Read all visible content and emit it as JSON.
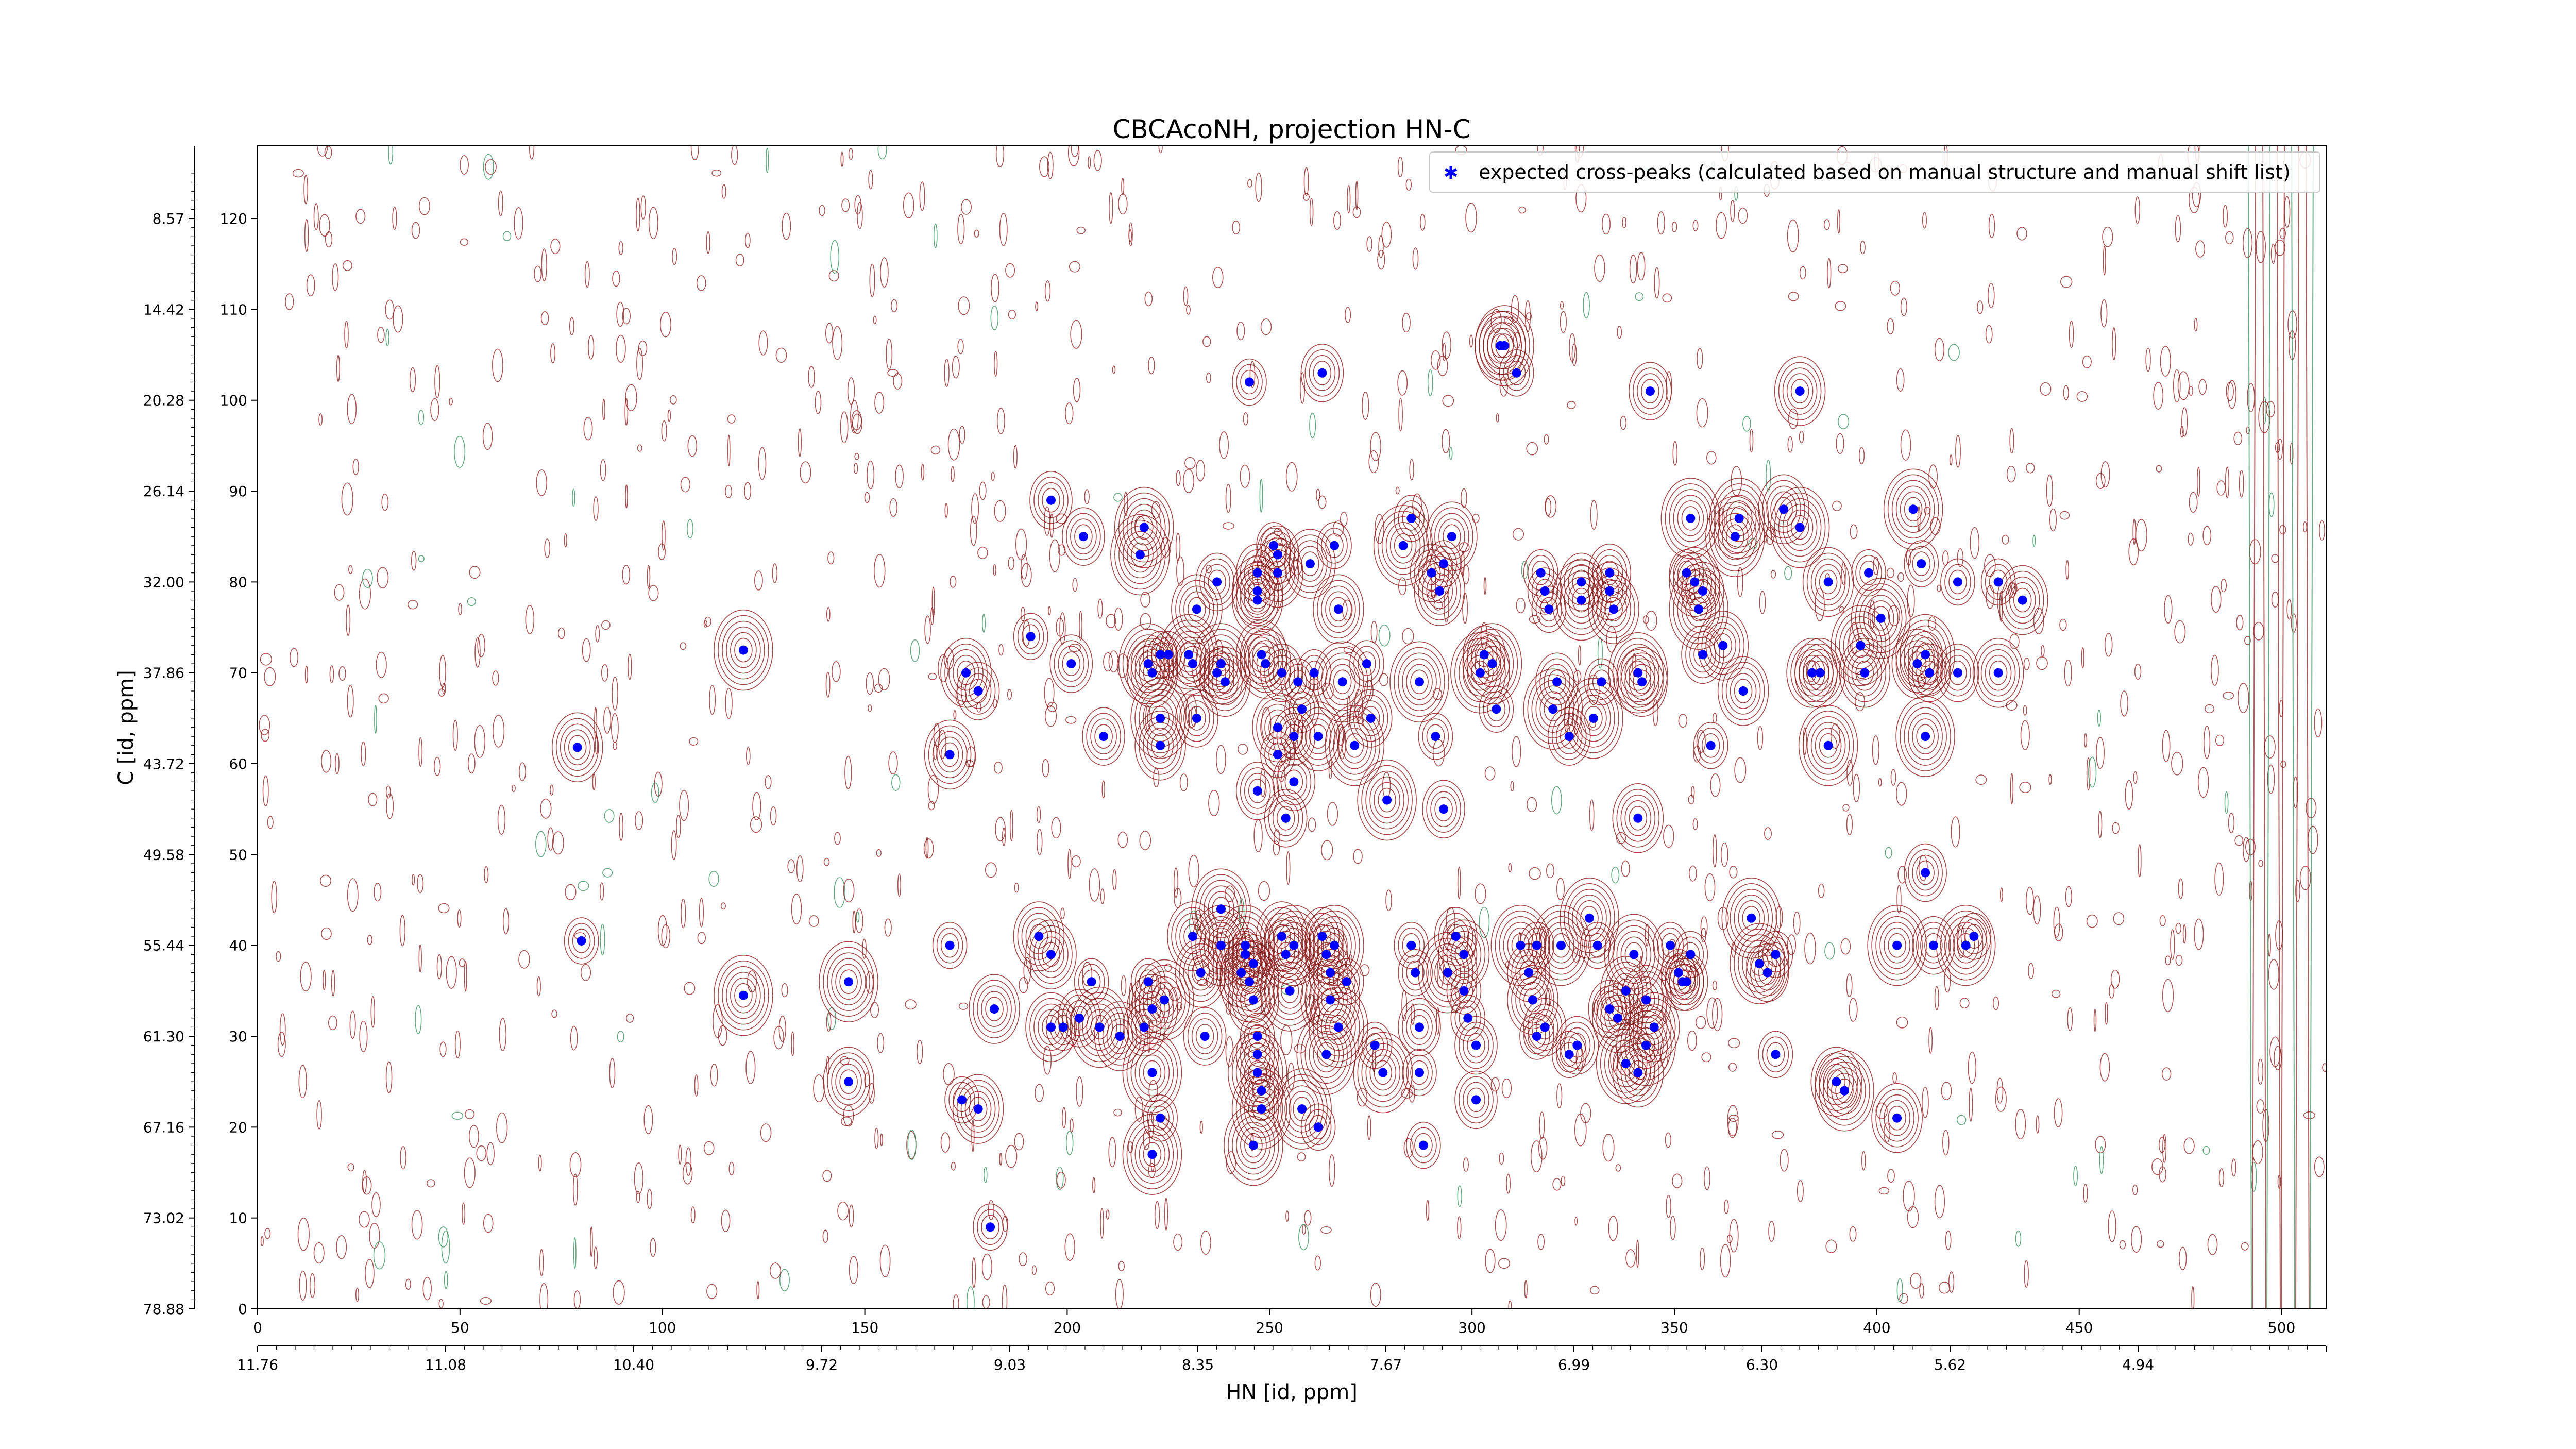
{
  "chart_data": {
    "type": "scatter",
    "title": "CBCAcoNH, projection HN-C",
    "xlabel": "HN [id, ppm]",
    "ylabel": "C [id, ppm]",
    "xlim": [
      0,
      511
    ],
    "ylim": [
      0,
      128
    ],
    "x_ticks": [
      0,
      50,
      100,
      150,
      200,
      250,
      300,
      350,
      400,
      450,
      500
    ],
    "y_ticks": [
      0,
      10,
      20,
      30,
      40,
      50,
      60,
      70,
      80,
      90,
      100,
      110,
      120
    ],
    "secondary_x_ticks": [
      "11.76",
      "11.08",
      "10.40",
      "9.72",
      "9.03",
      "8.35",
      "7.67",
      "6.99",
      "6.30",
      "5.62",
      "4.94"
    ],
    "secondary_y_ticks": [
      "78.88",
      "73.02",
      "67.16",
      "61.30",
      "55.44",
      "49.58",
      "43.72",
      "37.86",
      "32.00",
      "26.14",
      "20.28",
      "14.42",
      "8.57"
    ],
    "legend": {
      "label": "expected cross-peaks (calculated based on manual structure and manual shift list)",
      "position": "top-right"
    },
    "colors": {
      "marker": "#0000ff",
      "contour_positive": "#8b1a1a",
      "contour_negative": "#2e8b57"
    },
    "series": [
      {
        "name": "expected cross-peaks (calculated based on manual structure and manual shift list)",
        "points": [
          [
            79,
            61.8
          ],
          [
            120,
            72.5
          ],
          [
            80,
            40.5
          ],
          [
            120,
            34.5
          ],
          [
            146,
            36
          ],
          [
            146,
            25
          ],
          [
            171,
            40
          ],
          [
            171,
            61
          ],
          [
            175,
            70
          ],
          [
            178,
            68
          ],
          [
            174,
            23
          ],
          [
            178,
            22
          ],
          [
            182,
            33
          ],
          [
            181,
            9
          ],
          [
            191,
            74
          ],
          [
            193,
            41
          ],
          [
            196,
            39
          ],
          [
            196,
            31
          ],
          [
            199,
            31
          ],
          [
            196,
            89
          ],
          [
            204,
            85
          ],
          [
            201,
            71
          ],
          [
            203,
            32
          ],
          [
            206,
            36
          ],
          [
            208,
            31
          ],
          [
            209,
            63
          ],
          [
            213,
            30
          ],
          [
            218,
            83
          ],
          [
            219,
            86
          ],
          [
            220,
            71
          ],
          [
            221,
            70
          ],
          [
            219,
            31
          ],
          [
            220,
            36
          ],
          [
            221,
            33
          ],
          [
            221,
            26
          ],
          [
            223,
            62
          ],
          [
            223,
            65
          ],
          [
            223,
            72
          ],
          [
            224,
            34
          ],
          [
            225,
            72
          ],
          [
            223,
            21
          ],
          [
            221,
            17
          ],
          [
            231,
            41
          ],
          [
            232,
            77
          ],
          [
            230,
            72
          ],
          [
            231,
            71
          ],
          [
            232,
            65
          ],
          [
            233,
            37
          ],
          [
            234,
            30
          ],
          [
            237,
            80
          ],
          [
            237,
            70
          ],
          [
            238,
            71
          ],
          [
            239,
            69
          ],
          [
            238,
            44
          ],
          [
            238,
            40
          ],
          [
            243,
            37
          ],
          [
            244,
            40
          ],
          [
            244,
            39
          ],
          [
            246,
            38
          ],
          [
            245,
            36
          ],
          [
            246,
            34
          ],
          [
            247,
            81
          ],
          [
            247,
            79
          ],
          [
            247,
            78
          ],
          [
            248,
            72
          ],
          [
            249,
            71
          ],
          [
            245,
            102
          ],
          [
            247,
            57
          ],
          [
            247,
            30
          ],
          [
            247,
            28
          ],
          [
            248,
            22
          ],
          [
            247,
            26
          ],
          [
            246,
            18
          ],
          [
            248,
            24
          ],
          [
            251,
            84
          ],
          [
            252,
            83
          ],
          [
            252,
            81
          ],
          [
            252,
            61
          ],
          [
            252,
            64
          ],
          [
            253,
            41
          ],
          [
            254,
            39
          ],
          [
            255,
            35
          ],
          [
            256,
            40
          ],
          [
            254,
            54
          ],
          [
            256,
            63
          ],
          [
            256,
            58
          ],
          [
            253,
            70
          ],
          [
            257,
            69
          ],
          [
            258,
            66
          ],
          [
            258,
            22
          ],
          [
            260,
            82
          ],
          [
            261,
            70
          ],
          [
            262,
            63
          ],
          [
            263,
            41
          ],
          [
            264,
            39
          ],
          [
            265,
            37
          ],
          [
            266,
            40
          ],
          [
            265,
            34
          ],
          [
            267,
            31
          ],
          [
            269,
            36
          ],
          [
            263,
            103
          ],
          [
            262,
            20
          ],
          [
            264,
            28
          ],
          [
            266,
            84
          ],
          [
            267,
            77
          ],
          [
            268,
            69
          ],
          [
            271,
            62
          ],
          [
            274,
            71
          ],
          [
            275,
            65
          ],
          [
            276,
            29
          ],
          [
            278,
            26
          ],
          [
            279,
            56
          ],
          [
            283,
            84
          ],
          [
            285,
            87
          ],
          [
            285,
            40
          ],
          [
            286,
            37
          ],
          [
            287,
            31
          ],
          [
            287,
            26
          ],
          [
            288,
            18
          ],
          [
            287,
            69
          ],
          [
            290,
            81
          ],
          [
            292,
            79
          ],
          [
            293,
            82
          ],
          [
            291,
            63
          ],
          [
            293,
            55
          ],
          [
            294,
            37
          ],
          [
            295,
            85
          ],
          [
            296,
            41
          ],
          [
            298,
            39
          ],
          [
            298,
            35
          ],
          [
            299,
            32
          ],
          [
            301,
            29
          ],
          [
            301,
            23
          ],
          [
            302,
            70
          ],
          [
            303,
            72
          ],
          [
            305,
            71
          ],
          [
            306,
            66
          ],
          [
            307,
            106
          ],
          [
            308,
            106
          ],
          [
            311,
            103
          ],
          [
            312,
            40
          ],
          [
            314,
            37
          ],
          [
            315,
            34
          ],
          [
            316,
            40
          ],
          [
            316,
            30
          ],
          [
            318,
            31
          ],
          [
            317,
            81
          ],
          [
            318,
            79
          ],
          [
            319,
            77
          ],
          [
            320,
            66
          ],
          [
            321,
            69
          ],
          [
            322,
            40
          ],
          [
            324,
            28
          ],
          [
            324,
            63
          ],
          [
            326,
            29
          ],
          [
            327,
            80
          ],
          [
            327,
            78
          ],
          [
            329,
            43
          ],
          [
            331,
            40
          ],
          [
            332,
            69
          ],
          [
            334,
            81
          ],
          [
            334,
            79
          ],
          [
            335,
            77
          ],
          [
            330,
            65
          ],
          [
            334,
            33
          ],
          [
            336,
            32
          ],
          [
            338,
            35
          ],
          [
            340,
            39
          ],
          [
            341,
            54
          ],
          [
            341,
            70
          ],
          [
            342,
            69
          ],
          [
            338,
            27
          ],
          [
            341,
            26
          ],
          [
            343,
            34
          ],
          [
            343,
            29
          ],
          [
            345,
            31
          ],
          [
            349,
            40
          ],
          [
            351,
            37
          ],
          [
            352,
            36
          ],
          [
            353,
            36
          ],
          [
            354,
            39
          ],
          [
            353,
            81
          ],
          [
            354,
            87
          ],
          [
            355,
            80
          ],
          [
            357,
            79
          ],
          [
            356,
            77
          ],
          [
            357,
            72
          ],
          [
            359,
            62
          ],
          [
            362,
            73
          ],
          [
            365,
            85
          ],
          [
            366,
            87
          ],
          [
            367,
            68
          ],
          [
            369,
            43
          ],
          [
            371,
            38
          ],
          [
            373,
            37
          ],
          [
            375,
            39
          ],
          [
            375,
            28
          ],
          [
            377,
            88
          ],
          [
            381,
            86
          ],
          [
            384,
            70
          ],
          [
            386,
            70
          ],
          [
            388,
            80
          ],
          [
            388,
            62
          ],
          [
            390,
            25
          ],
          [
            392,
            24
          ],
          [
            396,
            73
          ],
          [
            397,
            70
          ],
          [
            398,
            81
          ],
          [
            401,
            76
          ],
          [
            405,
            40
          ],
          [
            405,
            21
          ],
          [
            409,
            88
          ],
          [
            411,
            82
          ],
          [
            412,
            72
          ],
          [
            413,
            70
          ],
          [
            412,
            63
          ],
          [
            414,
            40
          ],
          [
            420,
            80
          ],
          [
            420,
            70
          ],
          [
            422,
            40
          ],
          [
            424,
            41
          ],
          [
            430,
            80
          ],
          [
            430,
            70
          ],
          [
            436,
            78
          ],
          [
            410,
            71
          ],
          [
            412,
            48
          ],
          [
            381,
            101
          ],
          [
            344,
            101
          ]
        ]
      }
    ]
  }
}
